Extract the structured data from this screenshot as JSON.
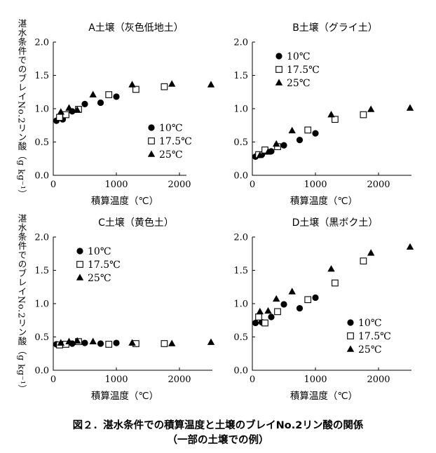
{
  "figure": {
    "ylabel": "湛水条件でのブレイNo.2リン酸（g kg⁻¹）",
    "caption_line1": "図２．湛水条件での積算温度と土壌のブレイNo.2リン酸の関係",
    "caption_line2": "（一部の土壌での例）"
  },
  "chart_data": [
    {
      "type": "scatter",
      "title": "A土壌（灰色低地土）",
      "xlabel": "積算温度（℃）",
      "ylabel": "湛水条件でのブレイNo.2リン酸（g kg⁻¹）",
      "xlim": [
        0,
        2500
      ],
      "ylim": [
        0,
        2.0
      ],
      "xticks": [
        0,
        1000,
        2000
      ],
      "yticks": [
        0.0,
        0.5,
        1.0,
        1.5,
        2.0
      ],
      "ytick_labels": [
        "0.0",
        "0.5",
        "1.0",
        "1.5",
        "2.0"
      ],
      "legend": "bottom-right",
      "series": [
        {
          "name": "10℃",
          "marker": "circle",
          "x": [
            50,
            150,
            300,
            500,
            750,
            1000
          ],
          "y": [
            0.82,
            0.84,
            0.96,
            1.07,
            1.09,
            1.18
          ]
        },
        {
          "name": "17.5℃",
          "marker": "square",
          "x": [
            100,
            200,
            400,
            880,
            1310,
            1760
          ],
          "y": [
            0.87,
            0.91,
            0.99,
            1.21,
            1.29,
            1.33
          ]
        },
        {
          "name": "25℃",
          "marker": "triangle",
          "x": [
            120,
            250,
            380,
            630,
            1250,
            1880,
            2500
          ],
          "y": [
            0.95,
            1.01,
            0.98,
            1.21,
            1.36,
            1.37,
            1.36
          ]
        }
      ]
    },
    {
      "type": "scatter",
      "title": "B土壌（グライ土）",
      "xlabel": "積算温度（℃）",
      "ylabel": "",
      "xlim": [
        0,
        2500
      ],
      "ylim": [
        0,
        2.0
      ],
      "xticks": [
        0,
        1000,
        2000
      ],
      "yticks": [
        0.0,
        0.5,
        1.0,
        1.5,
        2.0
      ],
      "ytick_labels": [
        "0.0",
        "0.5",
        "1.0",
        "1.5",
        "2.0"
      ],
      "legend": "top-left",
      "series": [
        {
          "name": "10℃",
          "marker": "circle",
          "x": [
            50,
            150,
            300,
            500,
            750,
            1000
          ],
          "y": [
            0.28,
            0.31,
            0.36,
            0.45,
            0.53,
            0.63
          ]
        },
        {
          "name": "17.5℃",
          "marker": "square",
          "x": [
            100,
            200,
            400,
            880,
            1310,
            1760
          ],
          "y": [
            0.31,
            0.38,
            0.43,
            0.68,
            0.84,
            0.91
          ]
        },
        {
          "name": "25℃",
          "marker": "triangle",
          "x": [
            120,
            250,
            380,
            630,
            1250,
            1880,
            2500
          ],
          "y": [
            0.3,
            0.35,
            0.47,
            0.67,
            0.91,
            0.99,
            1.01
          ]
        }
      ]
    },
    {
      "type": "scatter",
      "title": "C土壌（黄色土）",
      "xlabel": "積算温度（℃）",
      "ylabel": "湛水条件でのブレイNo.2リン酸（g kg⁻¹）",
      "xlim": [
        0,
        2500
      ],
      "ylim": [
        0,
        2.0
      ],
      "xticks": [
        0,
        1000,
        2000
      ],
      "yticks": [
        0.0,
        0.5,
        1.0,
        1.5,
        2.0
      ],
      "ytick_labels": [
        "0.0",
        "0.5",
        "1.0",
        "1.5",
        "2.0"
      ],
      "legend": "top-left",
      "series": [
        {
          "name": "10℃",
          "marker": "circle",
          "x": [
            50,
            150,
            300,
            500,
            750,
            1000
          ],
          "y": [
            0.39,
            0.39,
            0.4,
            0.41,
            0.4,
            0.41
          ]
        },
        {
          "name": "17.5℃",
          "marker": "square",
          "x": [
            100,
            200,
            400,
            880,
            1310,
            1760
          ],
          "y": [
            0.38,
            0.39,
            0.43,
            0.39,
            0.4,
            0.4
          ]
        },
        {
          "name": "25℃",
          "marker": "triangle",
          "x": [
            120,
            250,
            380,
            630,
            1250,
            1880,
            2500
          ],
          "y": [
            0.41,
            0.43,
            0.44,
            0.43,
            0.41,
            0.4,
            0.42
          ]
        }
      ]
    },
    {
      "type": "scatter",
      "title": "D土壌（黒ボク土）",
      "xlabel": "積算温度（℃）",
      "ylabel": "",
      "xlim": [
        0,
        2500
      ],
      "ylim": [
        0,
        2.0
      ],
      "xticks": [
        0,
        1000,
        2000
      ],
      "yticks": [
        0.0,
        0.5,
        1.0,
        1.5,
        2.0
      ],
      "ytick_labels": [
        "0.0",
        "0.5",
        "1.0",
        "1.5",
        "2.0"
      ],
      "legend": "bottom-right",
      "series": [
        {
          "name": "10℃",
          "marker": "circle",
          "x": [
            50,
            150,
            300,
            500,
            750,
            1000
          ],
          "y": [
            0.71,
            0.72,
            0.8,
            0.99,
            0.93,
            1.09
          ]
        },
        {
          "name": "17.5℃",
          "marker": "square",
          "x": [
            100,
            200,
            400,
            880,
            1310,
            1760
          ],
          "y": [
            0.8,
            0.71,
            0.88,
            1.06,
            1.31,
            1.64
          ]
        },
        {
          "name": "25℃",
          "marker": "triangle",
          "x": [
            120,
            250,
            380,
            630,
            1250,
            1880,
            2500
          ],
          "y": [
            0.88,
            0.89,
            1.07,
            1.18,
            1.52,
            1.76,
            1.85
          ]
        }
      ]
    }
  ]
}
